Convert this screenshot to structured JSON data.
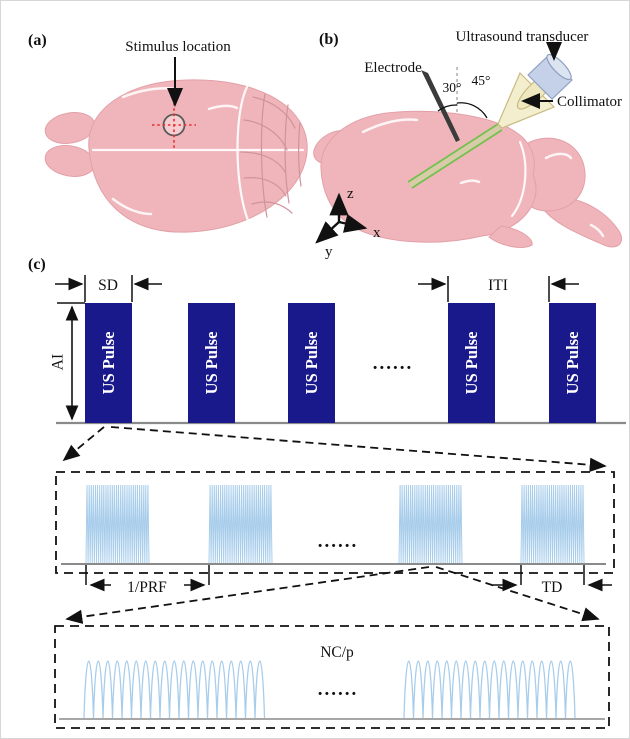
{
  "figure": {
    "panel_a": {
      "label": "(a)",
      "stimulus_annotation": "Stimulus location"
    },
    "panel_b": {
      "label": "(b)",
      "transducer": "Ultrasound transducer",
      "electrode": "Electrode",
      "collimator": "Collimator",
      "electrode_angle": "30°",
      "transducer_angle": "45°",
      "axis_x": "x",
      "axis_y": "y",
      "axis_z": "z"
    },
    "panel_c": {
      "label": "(c)",
      "pulse": "US Pulse",
      "sd": "SD",
      "iti": "ITI",
      "ai": "AI",
      "inv_prf": "1/PRF",
      "td": "TD",
      "nc_p": "NC/p",
      "dots": "......"
    }
  },
  "colors": {
    "pulse_bar": "#19198c",
    "waveform_blue": "#a8cdeb",
    "brain_pink": "#f0b5ba",
    "beam_green": "#72c14e",
    "beam_core": "#d8cba8",
    "electrode_dark": "#3b3b3b",
    "crosshair_red": "#e62e2e"
  }
}
